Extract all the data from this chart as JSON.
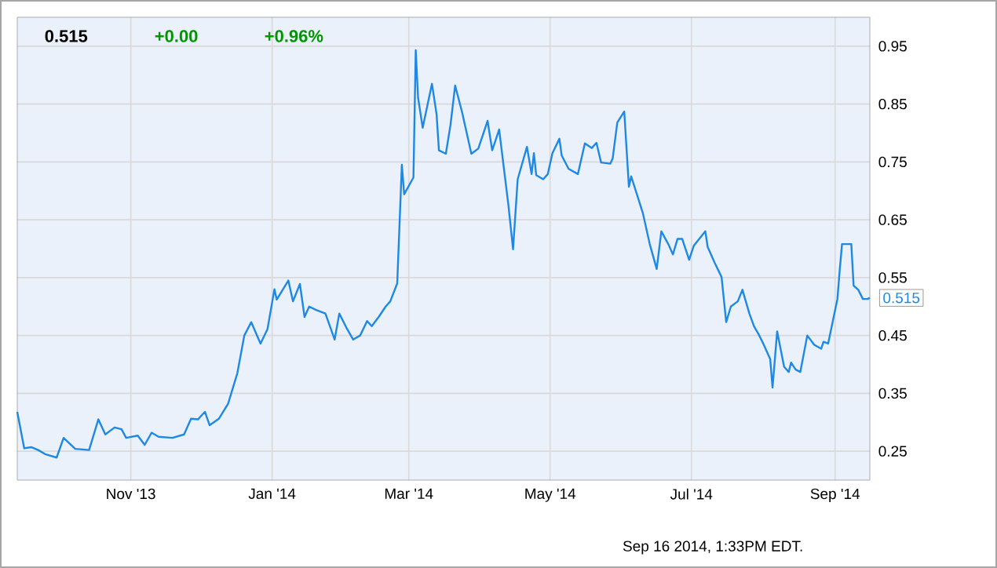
{
  "chart_data": {
    "type": "line",
    "color": "#1e88e5",
    "grid": true,
    "xlim": [
      "2013-09-13",
      "2014-09-16"
    ],
    "xticks": [
      {
        "value": "2013-11-01",
        "label": "Nov '13"
      },
      {
        "value": "2014-01-01",
        "label": "Jan '14"
      },
      {
        "value": "2014-03-01",
        "label": "Mar '14"
      },
      {
        "value": "2014-05-01",
        "label": "May '14"
      },
      {
        "value": "2014-07-01",
        "label": "Jul '14"
      },
      {
        "value": "2014-09-01",
        "label": "Sep '14"
      }
    ],
    "ylim": [
      0.2,
      1.0
    ],
    "yticks": [
      0.25,
      0.35,
      0.45,
      0.55,
      0.65,
      0.75,
      0.85,
      0.95
    ],
    "annotations": [
      "0.515",
      "+0.00",
      "+0.96%",
      {
        "text": "0.515",
        "x": "2014-09-16",
        "y": 0.515
      },
      "Sep 16 2014, 1:33PM EDT."
    ],
    "x": [
      "2013-09-13",
      "2013-09-16",
      "2013-09-19",
      "2013-09-22",
      "2013-09-25",
      "2013-09-30",
      "2013-10-03",
      "2013-10-08",
      "2013-10-14",
      "2013-10-18",
      "2013-10-21",
      "2013-10-25",
      "2013-10-28",
      "2013-10-30",
      "2013-11-04",
      "2013-11-07",
      "2013-11-10",
      "2013-11-13",
      "2013-11-19",
      "2013-11-24",
      "2013-11-27",
      "2013-11-30",
      "2013-12-03",
      "2013-12-05",
      "2013-12-09",
      "2013-12-13",
      "2013-12-17",
      "2013-12-20",
      "2013-12-23",
      "2013-12-27",
      "2013-12-30",
      "2014-01-02",
      "2014-01-03",
      "2014-01-08",
      "2014-01-10",
      "2014-01-13",
      "2014-01-15",
      "2014-01-17",
      "2014-01-20",
      "2014-01-24",
      "2014-01-28",
      "2014-01-30",
      "2014-02-02",
      "2014-02-05",
      "2014-02-08",
      "2014-02-11",
      "2014-02-13",
      "2014-02-16",
      "2014-02-19",
      "2014-02-21",
      "2014-02-24",
      "2014-02-26",
      "2014-02-27",
      "2014-03-03",
      "2014-03-04",
      "2014-03-05",
      "2014-03-07",
      "2014-03-11",
      "2014-03-13",
      "2014-03-14",
      "2014-03-17",
      "2014-03-19",
      "2014-03-21",
      "2014-03-24",
      "2014-03-28",
      "2014-03-31",
      "2014-04-04",
      "2014-04-06",
      "2014-04-09",
      "2014-04-13",
      "2014-04-15",
      "2014-04-17",
      "2014-04-21",
      "2014-04-23",
      "2014-04-24",
      "2014-04-25",
      "2014-04-28",
      "2014-04-30",
      "2014-05-02",
      "2014-05-05",
      "2014-05-06",
      "2014-05-09",
      "2014-05-13",
      "2014-05-16",
      "2014-05-19",
      "2014-05-21",
      "2014-05-23",
      "2014-05-27",
      "2014-05-28",
      "2014-05-30",
      "2014-06-02",
      "2014-06-04",
      "2014-06-05",
      "2014-06-10",
      "2014-06-13",
      "2014-06-16",
      "2014-06-18",
      "2014-06-21",
      "2014-06-23",
      "2014-06-25",
      "2014-06-27",
      "2014-06-30",
      "2014-07-02",
      "2014-07-07",
      "2014-07-08",
      "2014-07-11",
      "2014-07-14",
      "2014-07-16",
      "2014-07-18",
      "2014-07-21",
      "2014-07-23",
      "2014-07-26",
      "2014-07-28",
      "2014-07-30",
      "2014-08-01",
      "2014-08-04",
      "2014-08-05",
      "2014-08-07",
      "2014-08-10",
      "2014-08-12",
      "2014-08-13",
      "2014-08-15",
      "2014-08-17",
      "2014-08-20",
      "2014-08-23",
      "2014-08-26",
      "2014-08-27",
      "2014-08-29",
      "2014-09-02",
      "2014-09-03",
      "2014-09-04",
      "2014-09-08",
      "2014-09-09",
      "2014-09-11",
      "2014-09-13",
      "2014-09-15",
      "2014-09-16"
    ],
    "values": [
      0.318,
      0.255,
      0.257,
      0.252,
      0.245,
      0.239,
      0.273,
      0.254,
      0.252,
      0.305,
      0.279,
      0.291,
      0.288,
      0.273,
      0.277,
      0.261,
      0.282,
      0.275,
      0.273,
      0.279,
      0.306,
      0.305,
      0.318,
      0.295,
      0.306,
      0.332,
      0.385,
      0.45,
      0.473,
      0.436,
      0.461,
      0.53,
      0.512,
      0.545,
      0.509,
      0.539,
      0.482,
      0.5,
      0.494,
      0.488,
      0.443,
      0.488,
      0.464,
      0.443,
      0.45,
      0.475,
      0.466,
      0.482,
      0.5,
      0.509,
      0.54,
      0.745,
      0.694,
      0.723,
      0.943,
      0.861,
      0.809,
      0.885,
      0.832,
      0.77,
      0.764,
      0.814,
      0.882,
      0.836,
      0.764,
      0.773,
      0.821,
      0.77,
      0.806,
      0.675,
      0.599,
      0.72,
      0.776,
      0.729,
      0.765,
      0.727,
      0.72,
      0.729,
      0.765,
      0.79,
      0.761,
      0.738,
      0.729,
      0.782,
      0.774,
      0.783,
      0.749,
      0.747,
      0.756,
      0.818,
      0.837,
      0.707,
      0.725,
      0.662,
      0.608,
      0.565,
      0.63,
      0.608,
      0.59,
      0.617,
      0.617,
      0.581,
      0.605,
      0.63,
      0.603,
      0.576,
      0.551,
      0.473,
      0.5,
      0.509,
      0.529,
      0.488,
      0.466,
      0.452,
      0.436,
      0.409,
      0.36,
      0.457,
      0.396,
      0.387,
      0.403,
      0.391,
      0.387,
      0.45,
      0.434,
      0.427,
      0.439,
      0.436,
      0.513,
      0.563,
      0.608,
      0.608,
      0.536,
      0.529,
      0.513,
      0.513,
      0.515
    ]
  }
}
